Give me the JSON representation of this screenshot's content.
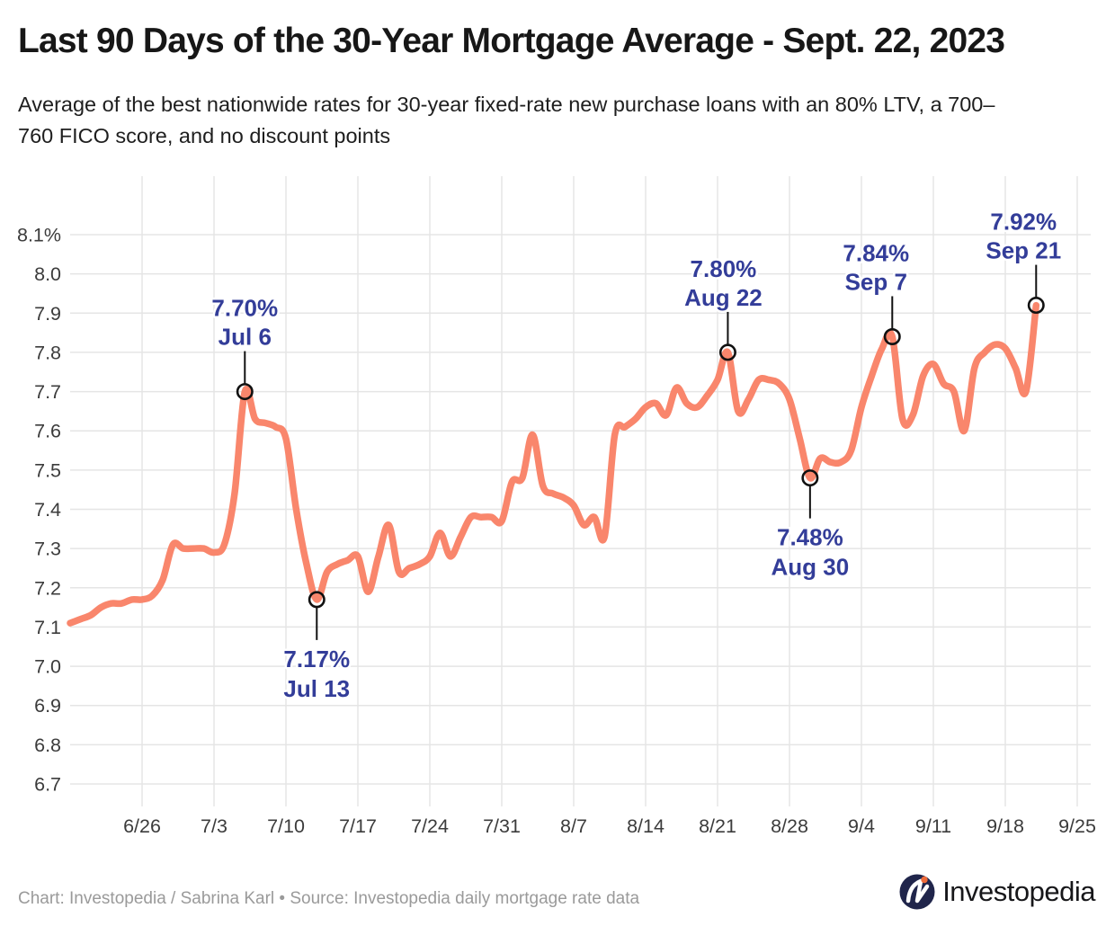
{
  "header": {
    "title": "Last 90 Days of the 30-Year Mortgage Average - Sept. 22, 2023",
    "subtitle_line1": "Average of the best nationwide rates for 30-year fixed-rate new purchase loans with an 80% LTV, a 700–",
    "subtitle_line2": "760 FICO score, and no discount points"
  },
  "footer": {
    "credit": "Chart: Investopedia / Sabrina Karl • Source: Investopedia daily mortgage rate data",
    "logo_text": "Investopedia"
  },
  "chart_data": {
    "type": "line",
    "title": "Last 90 Days of the 30-Year Mortgage Average - Sept. 22, 2023",
    "xlabel": "",
    "ylabel": "",
    "grid": true,
    "legend": "none",
    "ylim": [
      6.7,
      8.1
    ],
    "y_tick_labels": [
      "8.1%",
      "8.0",
      "7.9",
      "7.8",
      "7.7",
      "7.6",
      "7.5",
      "7.4",
      "7.3",
      "7.2",
      "7.1",
      "7.0",
      "6.9",
      "6.8",
      "6.7"
    ],
    "x_tick_labels": [
      "6/26",
      "7/3",
      "7/10",
      "7/17",
      "7/24",
      "7/31",
      "8/7",
      "8/14",
      "8/21",
      "8/28",
      "9/4",
      "9/11",
      "9/18",
      "9/25"
    ],
    "line_color": "#F9866C",
    "annotation_color": "#333D99",
    "gridline_color": "#E5E5E5",
    "series": [
      {
        "name": "30-Year Mortgage Average",
        "points": [
          [
            "6/19",
            7.11
          ],
          [
            "6/20",
            7.12
          ],
          [
            "6/21",
            7.13
          ],
          [
            "6/22",
            7.15
          ],
          [
            "6/23",
            7.16
          ],
          [
            "6/24",
            7.16
          ],
          [
            "6/25",
            7.17
          ],
          [
            "6/26",
            7.17
          ],
          [
            "6/27",
            7.18
          ],
          [
            "6/28",
            7.22
          ],
          [
            "6/29",
            7.31
          ],
          [
            "6/30",
            7.3
          ],
          [
            "7/1",
            7.3
          ],
          [
            "7/2",
            7.3
          ],
          [
            "7/3",
            7.29
          ],
          [
            "7/4",
            7.31
          ],
          [
            "7/5",
            7.44
          ],
          [
            "7/6",
            7.7
          ],
          [
            "7/7",
            7.63
          ],
          [
            "7/8",
            7.62
          ],
          [
            "7/9",
            7.61
          ],
          [
            "7/10",
            7.58
          ],
          [
            "7/11",
            7.4
          ],
          [
            "7/12",
            7.26
          ],
          [
            "7/13",
            7.17
          ],
          [
            "7/14",
            7.24
          ],
          [
            "7/15",
            7.26
          ],
          [
            "7/16",
            7.27
          ],
          [
            "7/17",
            7.28
          ],
          [
            "7/18",
            7.19
          ],
          [
            "7/19",
            7.28
          ],
          [
            "7/20",
            7.36
          ],
          [
            "7/21",
            7.24
          ],
          [
            "7/22",
            7.25
          ],
          [
            "7/23",
            7.26
          ],
          [
            "7/24",
            7.28
          ],
          [
            "7/25",
            7.34
          ],
          [
            "7/26",
            7.28
          ],
          [
            "7/27",
            7.33
          ],
          [
            "7/28",
            7.38
          ],
          [
            "7/29",
            7.38
          ],
          [
            "7/30",
            7.38
          ],
          [
            "7/31",
            7.37
          ],
          [
            "8/1",
            7.47
          ],
          [
            "8/2",
            7.48
          ],
          [
            "8/3",
            7.59
          ],
          [
            "8/4",
            7.46
          ],
          [
            "8/5",
            7.44
          ],
          [
            "8/6",
            7.43
          ],
          [
            "8/7",
            7.41
          ],
          [
            "8/8",
            7.36
          ],
          [
            "8/9",
            7.38
          ],
          [
            "8/10",
            7.33
          ],
          [
            "8/11",
            7.59
          ],
          [
            "8/12",
            7.61
          ],
          [
            "8/13",
            7.63
          ],
          [
            "8/14",
            7.66
          ],
          [
            "8/15",
            7.67
          ],
          [
            "8/16",
            7.64
          ],
          [
            "8/17",
            7.71
          ],
          [
            "8/18",
            7.67
          ],
          [
            "8/19",
            7.66
          ],
          [
            "8/20",
            7.69
          ],
          [
            "8/21",
            7.73
          ],
          [
            "8/22",
            7.8
          ],
          [
            "8/23",
            7.65
          ],
          [
            "8/24",
            7.68
          ],
          [
            "8/25",
            7.73
          ],
          [
            "8/26",
            7.73
          ],
          [
            "8/27",
            7.72
          ],
          [
            "8/28",
            7.68
          ],
          [
            "8/29",
            7.58
          ],
          [
            "8/30",
            7.48
          ],
          [
            "8/31",
            7.53
          ],
          [
            "9/1",
            7.52
          ],
          [
            "9/2",
            7.52
          ],
          [
            "9/3",
            7.55
          ],
          [
            "9/4",
            7.66
          ],
          [
            "9/5",
            7.74
          ],
          [
            "9/6",
            7.81
          ],
          [
            "9/7",
            7.84
          ],
          [
            "9/8",
            7.63
          ],
          [
            "9/9",
            7.64
          ],
          [
            "9/10",
            7.74
          ],
          [
            "9/11",
            7.77
          ],
          [
            "9/12",
            7.72
          ],
          [
            "9/13",
            7.7
          ],
          [
            "9/14",
            7.6
          ],
          [
            "9/15",
            7.76
          ],
          [
            "9/16",
            7.8
          ],
          [
            "9/17",
            7.82
          ],
          [
            "9/18",
            7.81
          ],
          [
            "9/19",
            7.76
          ],
          [
            "9/20",
            7.7
          ],
          [
            "9/21",
            7.92
          ]
        ]
      }
    ],
    "annotations": [
      {
        "label": "7.70%",
        "date_label": "Jul 6",
        "date": "7/6",
        "value": 7.7,
        "position": "above",
        "dx": 0
      },
      {
        "label": "7.17%",
        "date_label": "Jul 13",
        "date": "7/13",
        "value": 7.17,
        "position": "below",
        "dx": 0
      },
      {
        "label": "7.80%",
        "date_label": "Aug 22",
        "date": "8/22",
        "value": 7.8,
        "position": "above",
        "dx": -5
      },
      {
        "label": "7.48%",
        "date_label": "Aug 30",
        "date": "8/30",
        "value": 7.48,
        "position": "below",
        "dx": 0
      },
      {
        "label": "7.84%",
        "date_label": "Sep 7",
        "date": "9/7",
        "value": 7.84,
        "position": "above",
        "dx": -18
      },
      {
        "label": "7.92%",
        "date_label": "Sep 21",
        "date": "9/21",
        "value": 7.92,
        "position": "above",
        "dx": -14
      }
    ]
  }
}
